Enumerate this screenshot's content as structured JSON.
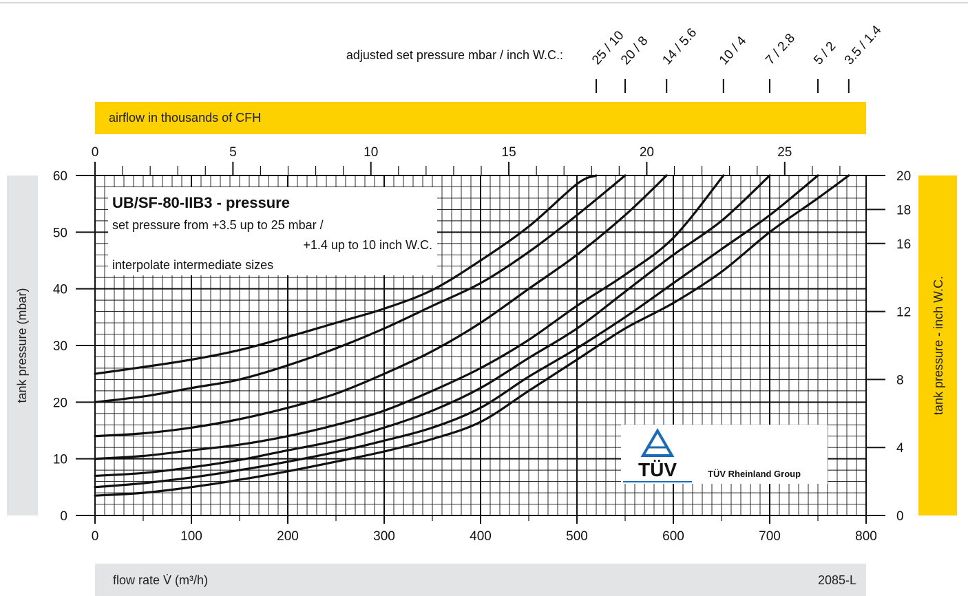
{
  "chart_data": {
    "type": "line",
    "title": "UB/SF-80-IIB3 - pressure",
    "subtitle_lines": [
      "set pressure from   +3.5 up to 25 mbar /",
      "+1.4 up to 10 inch W.C.",
      "interpolate intermediate sizes"
    ],
    "xlabel": "flow rate V̇ (m³/h)",
    "ylabel": "tank pressure (mbar)",
    "x2label": "airflow in thousands of CFH",
    "y2label": "tank pressure  - inch W.C.",
    "set_pressure_label": "adjusted set pressure mbar / inch W.C.:",
    "figure_code": "2085-L",
    "logo_text": "TÜV",
    "logo_group": "TÜV Rheinland Group",
    "xlim": [
      0,
      800
    ],
    "ylim": [
      0,
      60
    ],
    "x2lim": [
      0,
      27.95
    ],
    "y2lim": [
      0,
      20
    ],
    "x_ticks": [
      0,
      100,
      200,
      300,
      400,
      500,
      600,
      700,
      800
    ],
    "y_ticks": [
      0,
      10,
      20,
      30,
      40,
      50,
      60
    ],
    "x2_ticks": [
      0,
      5,
      10,
      15,
      20,
      25
    ],
    "y2_ticks": [
      0,
      4,
      8,
      12,
      16,
      18,
      20
    ],
    "grid": true,
    "colors": {
      "band_yellow": "#fdd000",
      "band_gray": "#e3e4e6",
      "line": "#111111"
    },
    "series": [
      {
        "label": "25 / 10",
        "label_x": 520,
        "points": [
          [
            0,
            25
          ],
          [
            50,
            26.2
          ],
          [
            100,
            27.5
          ],
          [
            150,
            29.2
          ],
          [
            200,
            31.5
          ],
          [
            250,
            34
          ],
          [
            300,
            36.5
          ],
          [
            350,
            39.8
          ],
          [
            400,
            45
          ],
          [
            450,
            51
          ],
          [
            500,
            58.5
          ],
          [
            520,
            60
          ]
        ]
      },
      {
        "label": "20 / 8",
        "label_x": 550,
        "points": [
          [
            0,
            20
          ],
          [
            50,
            21
          ],
          [
            100,
            22.5
          ],
          [
            150,
            24
          ],
          [
            200,
            26.5
          ],
          [
            250,
            29.5
          ],
          [
            300,
            33
          ],
          [
            350,
            37
          ],
          [
            400,
            41
          ],
          [
            450,
            46.5
          ],
          [
            500,
            53
          ],
          [
            550,
            60
          ]
        ]
      },
      {
        "label": "14 / 5.6",
        "label_x": 593,
        "points": [
          [
            0,
            14
          ],
          [
            50,
            14.5
          ],
          [
            100,
            15.5
          ],
          [
            150,
            17
          ],
          [
            200,
            19
          ],
          [
            250,
            21.5
          ],
          [
            300,
            25
          ],
          [
            350,
            29
          ],
          [
            400,
            34
          ],
          [
            450,
            40
          ],
          [
            500,
            46
          ],
          [
            550,
            53
          ],
          [
            593,
            60
          ]
        ]
      },
      {
        "label": "10 / 4",
        "label_x": 652,
        "points": [
          [
            0,
            10
          ],
          [
            50,
            10.5
          ],
          [
            100,
            11.5
          ],
          [
            150,
            12.5
          ],
          [
            200,
            14
          ],
          [
            250,
            16
          ],
          [
            300,
            18.5
          ],
          [
            350,
            22
          ],
          [
            400,
            26
          ],
          [
            450,
            31
          ],
          [
            500,
            37
          ],
          [
            550,
            42.5
          ],
          [
            600,
            49
          ],
          [
            652,
            60
          ]
        ]
      },
      {
        "label": "7 / 2.8",
        "label_x": 700,
        "points": [
          [
            0,
            7
          ],
          [
            50,
            7.5
          ],
          [
            100,
            8.5
          ],
          [
            150,
            9.8
          ],
          [
            200,
            11.5
          ],
          [
            250,
            13.2
          ],
          [
            300,
            15.5
          ],
          [
            350,
            18.5
          ],
          [
            400,
            22.5
          ],
          [
            450,
            27.8
          ],
          [
            500,
            33
          ],
          [
            550,
            39.5
          ],
          [
            600,
            46
          ],
          [
            650,
            52
          ],
          [
            700,
            60
          ]
        ]
      },
      {
        "label": "5 / 2",
        "label_x": 750,
        "points": [
          [
            0,
            5
          ],
          [
            50,
            5.7
          ],
          [
            100,
            6.7
          ],
          [
            150,
            8
          ],
          [
            200,
            9.5
          ],
          [
            250,
            11.2
          ],
          [
            300,
            13.2
          ],
          [
            350,
            15.5
          ],
          [
            400,
            19
          ],
          [
            450,
            24.5
          ],
          [
            500,
            29.5
          ],
          [
            550,
            35
          ],
          [
            600,
            41
          ],
          [
            650,
            47
          ],
          [
            700,
            53
          ],
          [
            750,
            60
          ]
        ]
      },
      {
        "label": "3.5 / 1.4",
        "label_x": 782,
        "points": [
          [
            0,
            3.5
          ],
          [
            50,
            4
          ],
          [
            100,
            5
          ],
          [
            150,
            6.3
          ],
          [
            200,
            7.8
          ],
          [
            250,
            9.5
          ],
          [
            300,
            11.3
          ],
          [
            350,
            13.5
          ],
          [
            400,
            16.5
          ],
          [
            450,
            22
          ],
          [
            500,
            27.5
          ],
          [
            550,
            33
          ],
          [
            600,
            37.5
          ],
          [
            650,
            43
          ],
          [
            700,
            50
          ],
          [
            750,
            56
          ],
          [
            782,
            60
          ]
        ]
      }
    ]
  }
}
